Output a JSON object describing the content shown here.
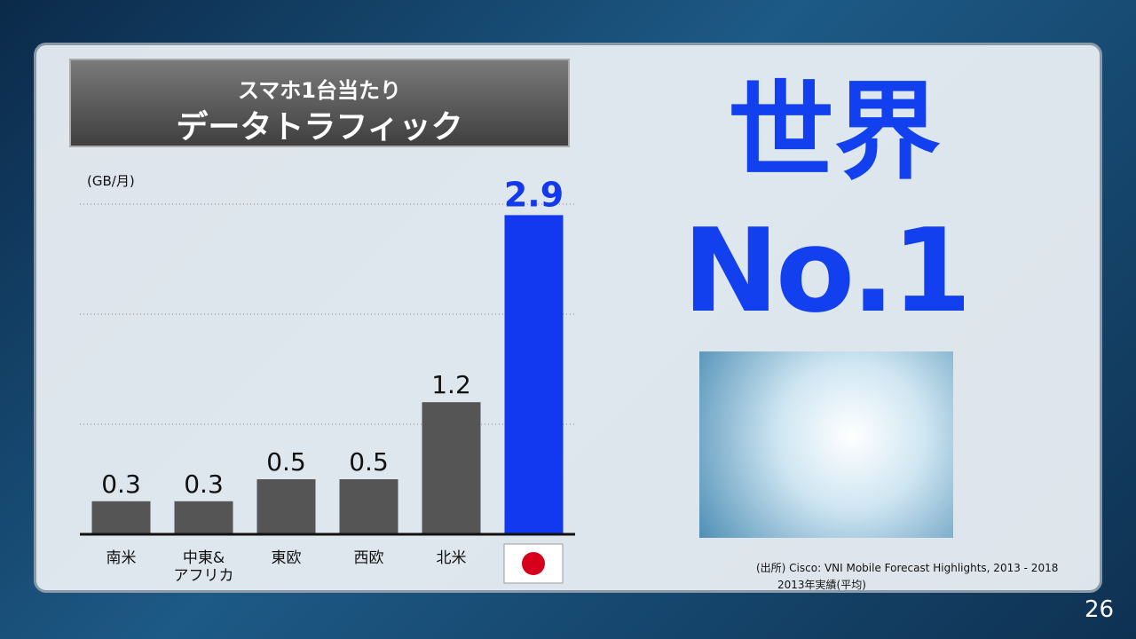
{
  "title_line1": "スマホ1台当たり",
  "title_line2": "データトラフィック",
  "headline_1": "世界",
  "headline_2": "No.1",
  "source": "(出所) Cisco: VNI Mobile Forecast Highlights, 2013 - 2018",
  "source_note": "2013年実績(平均)",
  "page_number": "26",
  "chart_data": {
    "type": "bar",
    "y_label": "(GB/月)",
    "categories": [
      "南米",
      "中東&\nアフリカ",
      "東欧",
      "西欧",
      "北米",
      null
    ],
    "values": [
      0.3,
      0.3,
      0.5,
      0.5,
      1.2,
      2.9
    ],
    "colors": [
      "#555555",
      "#555555",
      "#555555",
      "#555555",
      "#555555",
      "#1238f0"
    ],
    "ylim": [
      0,
      3
    ],
    "yticks": [
      0,
      1,
      2,
      3
    ],
    "grid": true
  }
}
